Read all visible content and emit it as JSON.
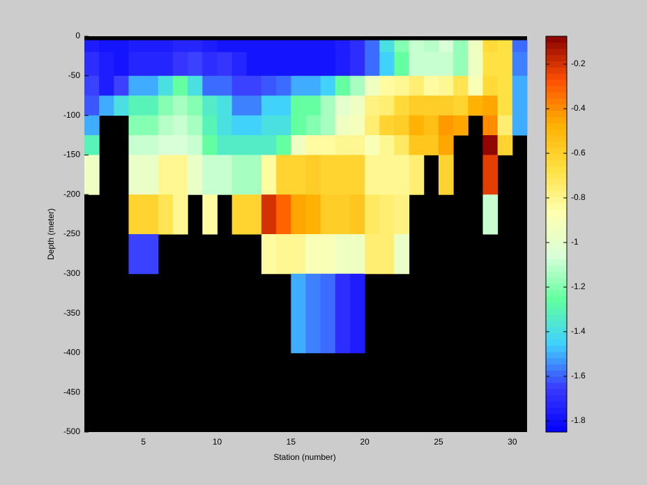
{
  "chart_data": {
    "type": "heatmap",
    "xlabel": "Station (number)",
    "ylabel": "Depth (meter)",
    "x_edges": [
      1,
      2,
      3,
      4,
      5,
      6,
      7,
      8,
      9,
      10,
      11,
      12,
      13,
      14,
      15,
      16,
      17,
      18,
      19,
      20,
      21,
      22,
      23,
      24,
      25,
      26,
      27,
      28,
      29,
      30,
      31
    ],
    "y_edges": [
      -5,
      -20,
      -50,
      -75,
      -100,
      -125,
      -150,
      -200,
      -250,
      -300,
      -400,
      -500
    ],
    "values": [
      [
        -1.75,
        -1.7,
        -1.65,
        -1.62,
        -1.5,
        -1.3,
        -0.95,
        null,
        null,
        null,
        null
      ],
      [
        -1.78,
        -1.75,
        -1.75,
        -1.5,
        null,
        null,
        null,
        null,
        null,
        null,
        null
      ],
      [
        -1.78,
        -1.78,
        -1.65,
        -1.4,
        null,
        null,
        null,
        null,
        null,
        null,
        null
      ],
      [
        -1.75,
        -1.72,
        -1.5,
        -1.3,
        -1.2,
        -1.1,
        -0.98,
        -0.62,
        -1.65,
        null,
        null
      ],
      [
        -1.75,
        -1.72,
        -1.5,
        -1.3,
        -1.2,
        -1.1,
        -0.98,
        -0.62,
        -1.65,
        null,
        null
      ],
      [
        -1.75,
        -1.72,
        -1.4,
        -1.2,
        -1.12,
        -1.05,
        -0.8,
        -0.7,
        null,
        null,
        null
      ],
      [
        -1.72,
        -1.68,
        -1.25,
        -1.15,
        -1.1,
        -1.05,
        -0.8,
        -0.8,
        null,
        null,
        null
      ],
      [
        -1.72,
        -1.65,
        -1.4,
        -1.2,
        -1.15,
        -1.1,
        -0.98,
        null,
        null,
        null,
        null
      ],
      [
        -1.75,
        -1.7,
        -1.6,
        -1.35,
        -1.3,
        -1.25,
        -1.1,
        -0.85,
        null,
        null,
        null
      ],
      [
        -1.78,
        -1.68,
        -1.6,
        -1.4,
        -1.4,
        -1.35,
        -1.1,
        null,
        null,
        null,
        null
      ],
      [
        -1.78,
        -1.72,
        -1.65,
        -1.55,
        -1.45,
        -1.35,
        -1.15,
        -0.62,
        null,
        null,
        null
      ],
      [
        -1.78,
        -1.78,
        -1.65,
        -1.55,
        -1.45,
        -1.35,
        -1.15,
        -0.62,
        null,
        null,
        null
      ],
      [
        -1.78,
        -1.78,
        -1.62,
        -1.45,
        -1.4,
        -1.35,
        -0.85,
        -0.2,
        -0.85,
        null,
        null
      ],
      [
        -1.78,
        -1.78,
        -1.6,
        -1.45,
        -1.4,
        -1.25,
        -0.62,
        -0.3,
        -0.82,
        null,
        null
      ],
      [
        -1.78,
        -1.78,
        -1.5,
        -1.25,
        -1.25,
        -0.95,
        -0.62,
        -0.45,
        -0.82,
        -1.5,
        null
      ],
      [
        -1.78,
        -1.78,
        -1.5,
        -1.25,
        -1.2,
        -0.85,
        -0.6,
        -0.48,
        -0.88,
        -1.55,
        null
      ],
      [
        -1.78,
        -1.78,
        -1.45,
        -1.15,
        -1.15,
        -0.85,
        -0.62,
        -0.6,
        -0.88,
        -1.6,
        null
      ],
      [
        -1.75,
        -1.75,
        -1.25,
        -1.0,
        -0.95,
        -0.8,
        -0.62,
        -0.6,
        -0.95,
        -1.7,
        null
      ],
      [
        -1.7,
        -1.7,
        -1.15,
        -0.95,
        -0.92,
        -0.8,
        -0.62,
        -0.55,
        -0.95,
        -1.75,
        null
      ],
      [
        -1.6,
        -1.6,
        -0.95,
        -0.78,
        -0.75,
        -0.9,
        -0.82,
        -0.72,
        -0.75,
        null,
        null
      ],
      [
        -1.4,
        -1.45,
        -0.85,
        -0.75,
        -0.62,
        -0.8,
        -0.82,
        -0.75,
        -0.75,
        null,
        null
      ],
      [
        -1.2,
        -1.25,
        -0.82,
        -0.65,
        -0.58,
        -0.72,
        -0.8,
        -0.78,
        -0.98,
        null,
        null
      ],
      [
        -1.1,
        -1.1,
        -0.75,
        -0.6,
        -0.48,
        -0.55,
        -0.75,
        null,
        null,
        null,
        null
      ],
      [
        -1.12,
        -1.1,
        -0.85,
        -0.6,
        -0.52,
        -0.55,
        null,
        null,
        null,
        null,
        null
      ],
      [
        -1.05,
        -1.08,
        -0.8,
        -0.6,
        -0.42,
        -0.45,
        -0.62,
        null,
        null,
        null,
        null
      ],
      [
        -1.18,
        -1.18,
        -0.7,
        -0.62,
        -0.45,
        null,
        null,
        null,
        null,
        null,
        null
      ],
      [
        -0.95,
        -0.95,
        -0.9,
        -0.48,
        null,
        null,
        null,
        null,
        null,
        null,
        null
      ],
      [
        -0.65,
        -0.68,
        -0.65,
        -0.45,
        -0.4,
        -0.1,
        -0.22,
        -1.1,
        null,
        null,
        null
      ],
      [
        -0.68,
        -0.68,
        -0.68,
        -0.68,
        -0.75,
        -0.62,
        null,
        null,
        null,
        null,
        null
      ],
      [
        -1.6,
        -1.55,
        -1.5,
        -1.5,
        -1.5,
        null,
        null,
        null,
        null,
        null,
        null
      ]
    ],
    "xlim": [
      1,
      31
    ],
    "xticks": [
      5,
      10,
      15,
      20,
      25,
      30
    ],
    "ylim": [
      -500,
      0
    ],
    "yticks": [
      0,
      -50,
      -100,
      -150,
      -200,
      -250,
      -300,
      -350,
      -400,
      -450,
      -500
    ],
    "clim": [
      -1.85,
      -0.075
    ],
    "cticks": [
      -1.8,
      -1.6,
      -1.4,
      -1.2,
      -1,
      -0.8,
      -0.6,
      -0.4,
      -0.2
    ],
    "colormap": [
      "#0000ff",
      "#3a3aff",
      "#40d0ff",
      "#60ffa0",
      "#d8ffd8",
      "#ffffb0",
      "#ffe040",
      "#ffb000",
      "#ff5000",
      "#880000"
    ],
    "missing_color": "#000000"
  }
}
